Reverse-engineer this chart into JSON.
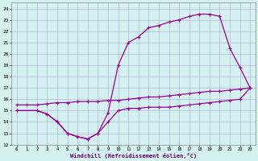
{
  "xlabel": "Windchill (Refroidissement éolien,°C)",
  "background_color": "#d4f0f0",
  "grid_color": "#aaaacc",
  "line_color": "#990099",
  "xlim": [
    -0.5,
    23.5
  ],
  "ylim": [
    12,
    24.5
  ],
  "xticks": [
    0,
    1,
    2,
    3,
    4,
    5,
    6,
    7,
    8,
    9,
    10,
    11,
    12,
    13,
    14,
    15,
    16,
    17,
    18,
    19,
    20,
    21,
    22,
    23
  ],
  "yticks": [
    12,
    13,
    14,
    15,
    16,
    17,
    18,
    19,
    20,
    21,
    22,
    23,
    24
  ],
  "line1_x": [
    0,
    1,
    2,
    3,
    4,
    5,
    6,
    7,
    8,
    9,
    10,
    11,
    12,
    13,
    14,
    15,
    16,
    17,
    18,
    19,
    20,
    21,
    22,
    23
  ],
  "line1_y": [
    15.5,
    15.5,
    15.5,
    15.6,
    15.7,
    15.7,
    15.8,
    15.8,
    15.8,
    15.9,
    15.9,
    16.0,
    16.1,
    16.2,
    16.2,
    16.3,
    16.4,
    16.5,
    16.6,
    16.7,
    16.7,
    16.8,
    16.9,
    17.0
  ],
  "line2_x": [
    0,
    2,
    3,
    4,
    5,
    6,
    7,
    8,
    9,
    10,
    11,
    12,
    13,
    14,
    15,
    16,
    17,
    18,
    19,
    20,
    21,
    22,
    23
  ],
  "line2_y": [
    15.0,
    15.0,
    14.7,
    14.0,
    13.0,
    12.7,
    12.5,
    13.0,
    14.0,
    15.0,
    15.2,
    15.2,
    15.3,
    15.3,
    15.3,
    15.4,
    15.5,
    15.6,
    15.7,
    15.8,
    15.9,
    16.0,
    17.0
  ],
  "line3_x": [
    0,
    2,
    3,
    4,
    5,
    6,
    7,
    8,
    9,
    10,
    11,
    12,
    13,
    14,
    15,
    16,
    17,
    18,
    19,
    20,
    21,
    22,
    23
  ],
  "line3_y": [
    15.0,
    15.0,
    14.7,
    14.0,
    13.0,
    12.7,
    12.5,
    13.0,
    14.8,
    19.0,
    21.0,
    21.5,
    22.3,
    22.5,
    22.8,
    23.0,
    23.3,
    23.5,
    23.5,
    23.3,
    20.5,
    18.8,
    17.0
  ],
  "markersize": 2.5,
  "linewidth": 0.9
}
